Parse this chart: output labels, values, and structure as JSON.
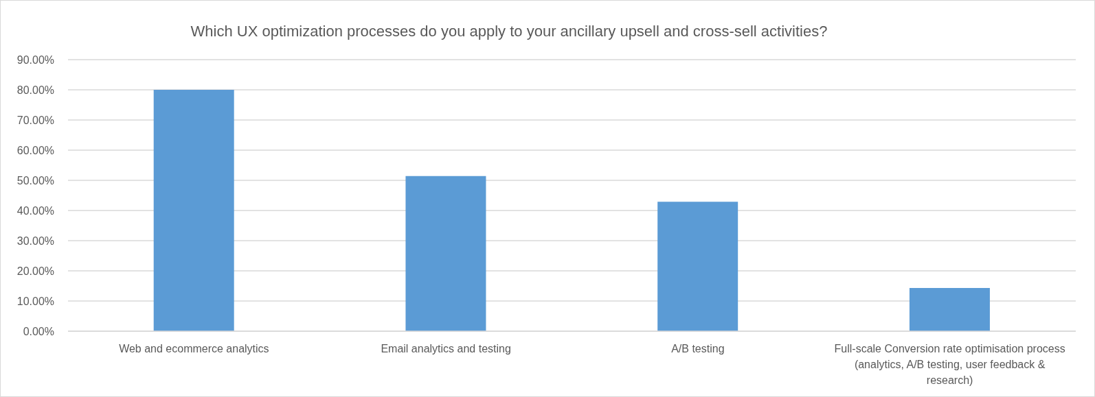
{
  "chart_data": {
    "type": "bar",
    "title": "Which UX optimization processes do you apply to your ancillary upsell and cross-sell activities?",
    "categories": [
      "Web and ecommerce analytics",
      "Email analytics and testing",
      "A/B testing",
      "Full-scale Conversion rate optimisation process (analytics, A/B testing, user feedback & research)"
    ],
    "values": [
      80,
      51.4,
      42.9,
      14.3
    ],
    "color": "#5b9bd5",
    "ylim": [
      0,
      90
    ],
    "yticks": [
      {
        "value": 0,
        "label": "0.00%"
      },
      {
        "value": 10,
        "label": "10.00%"
      },
      {
        "value": 20,
        "label": "20.00%"
      },
      {
        "value": 30,
        "label": "30.00%"
      },
      {
        "value": 40,
        "label": "40.00%"
      },
      {
        "value": 50,
        "label": "50.00%"
      },
      {
        "value": 60,
        "label": "60.00%"
      },
      {
        "value": 70,
        "label": "70.00%"
      },
      {
        "value": 80,
        "label": "80.00%"
      },
      {
        "value": 90,
        "label": "90.00%"
      }
    ],
    "grid": "y"
  }
}
